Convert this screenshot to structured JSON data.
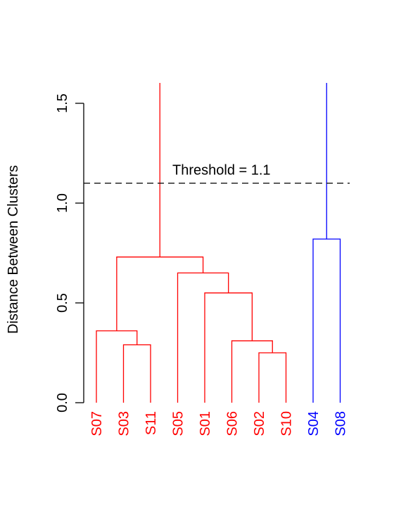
{
  "chart_data": {
    "type": "dendrogram",
    "ylabel": "Distance Between Clusters",
    "ylim": [
      0,
      1.6
    ],
    "yticks": [
      0.0,
      0.5,
      1.0,
      1.5
    ],
    "ytick_labels": [
      "0.0",
      "0.5",
      "1.0",
      "1.5"
    ],
    "leaves": [
      "S07",
      "S03",
      "S11",
      "S05",
      "S01",
      "S06",
      "S02",
      "S10",
      "S04",
      "S08"
    ],
    "threshold": {
      "value": 1.1,
      "label": "Threshold = 1.1"
    },
    "clusters": [
      {
        "color": "#ff0000",
        "leaves": [
          "S07",
          "S03",
          "S11",
          "S05",
          "S01",
          "S06",
          "S02",
          "S10"
        ]
      },
      {
        "color": "#0000ff",
        "leaves": [
          "S04",
          "S08"
        ]
      }
    ],
    "merges": [
      {
        "left": "S02",
        "right": "S10",
        "height": 0.25,
        "cluster": 0
      },
      {
        "left": "S03",
        "right": "S11",
        "height": 0.29,
        "cluster": 0
      },
      {
        "left": "S06",
        "right": "S02+S10",
        "height": 0.31,
        "cluster": 0
      },
      {
        "left": "S07",
        "right": "S03+S11",
        "height": 0.36,
        "cluster": 0
      },
      {
        "left": "S01",
        "right": "S06+S02+S10",
        "height": 0.55,
        "cluster": 0
      },
      {
        "left": "S05",
        "right": "S01+S06+S02+S10",
        "height": 0.65,
        "cluster": 0
      },
      {
        "left": "S07+S03+S11",
        "right": "S05+S01+S06+S02+S10",
        "height": 0.73,
        "cluster": 0
      },
      {
        "left": "S04",
        "right": "S08",
        "height": 0.82,
        "cluster": 1
      }
    ],
    "grid": false,
    "legend": "none"
  }
}
